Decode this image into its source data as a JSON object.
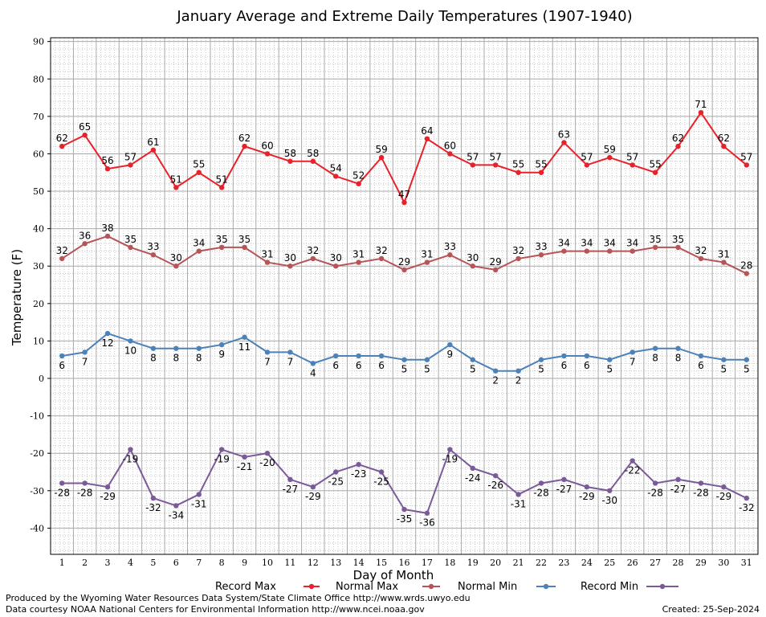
{
  "chart_data": {
    "type": "line",
    "title": "January Average and Extreme Daily Temperatures (1907-1940)",
    "xlabel": "Day of Month",
    "ylabel": "Temperature (F)",
    "ylim": [
      -47,
      91
    ],
    "yticks": [
      -40,
      -30,
      -20,
      -10,
      0,
      10,
      20,
      30,
      40,
      50,
      60,
      70,
      80,
      90
    ],
    "grid": true,
    "legend_position": "bottom",
    "x": [
      1,
      2,
      3,
      4,
      5,
      6,
      7,
      8,
      9,
      10,
      11,
      12,
      13,
      14,
      15,
      16,
      17,
      18,
      19,
      20,
      21,
      22,
      23,
      24,
      25,
      26,
      27,
      28,
      29,
      30,
      31
    ],
    "series": [
      {
        "name": "Record Max",
        "color": "#e8212a",
        "values": [
          62,
          65,
          56,
          57,
          61,
          51,
          55,
          51,
          62,
          60,
          58,
          58,
          54,
          52,
          59,
          47,
          64,
          60,
          57,
          57,
          55,
          55,
          63,
          57,
          59,
          57,
          55,
          62,
          71,
          62,
          57
        ]
      },
      {
        "name": "Normal Max",
        "color": "#b65457",
        "values": [
          32,
          36,
          38,
          35,
          33,
          30,
          34,
          35,
          35,
          31,
          30,
          32,
          30,
          31,
          32,
          29,
          31,
          33,
          30,
          29,
          32,
          33,
          34,
          34,
          34,
          34,
          35,
          35,
          32,
          31,
          28
        ]
      },
      {
        "name": "Normal Min",
        "color": "#4d82b8",
        "values": [
          6,
          7,
          12,
          10,
          8,
          8,
          8,
          9,
          11,
          7,
          7,
          4,
          6,
          6,
          6,
          5,
          5,
          9,
          5,
          2,
          2,
          5,
          6,
          6,
          5,
          7,
          8,
          8,
          6,
          5,
          5
        ]
      },
      {
        "name": "Record Min",
        "color": "#7b5a9a",
        "values": [
          -28,
          -28,
          -29,
          -19,
          -32,
          -34,
          -31,
          -19,
          -21,
          -20,
          -27,
          -29,
          -25,
          -23,
          -25,
          -35,
          -36,
          -19,
          -24,
          -26,
          -31,
          -28,
          -27,
          -29,
          -30,
          -22,
          -28,
          -27,
          -28,
          -29,
          -32
        ]
      }
    ]
  },
  "footer": {
    "produced_by": "Produced by the Wyoming Water Resources Data System/State Climate Office http://www.wrds.uwyo.edu",
    "data_courtesy": "Data courtesy NOAA National Centers for Environmental Information http://www.ncei.noaa.gov",
    "created": "Created:  25-Sep-2024"
  }
}
